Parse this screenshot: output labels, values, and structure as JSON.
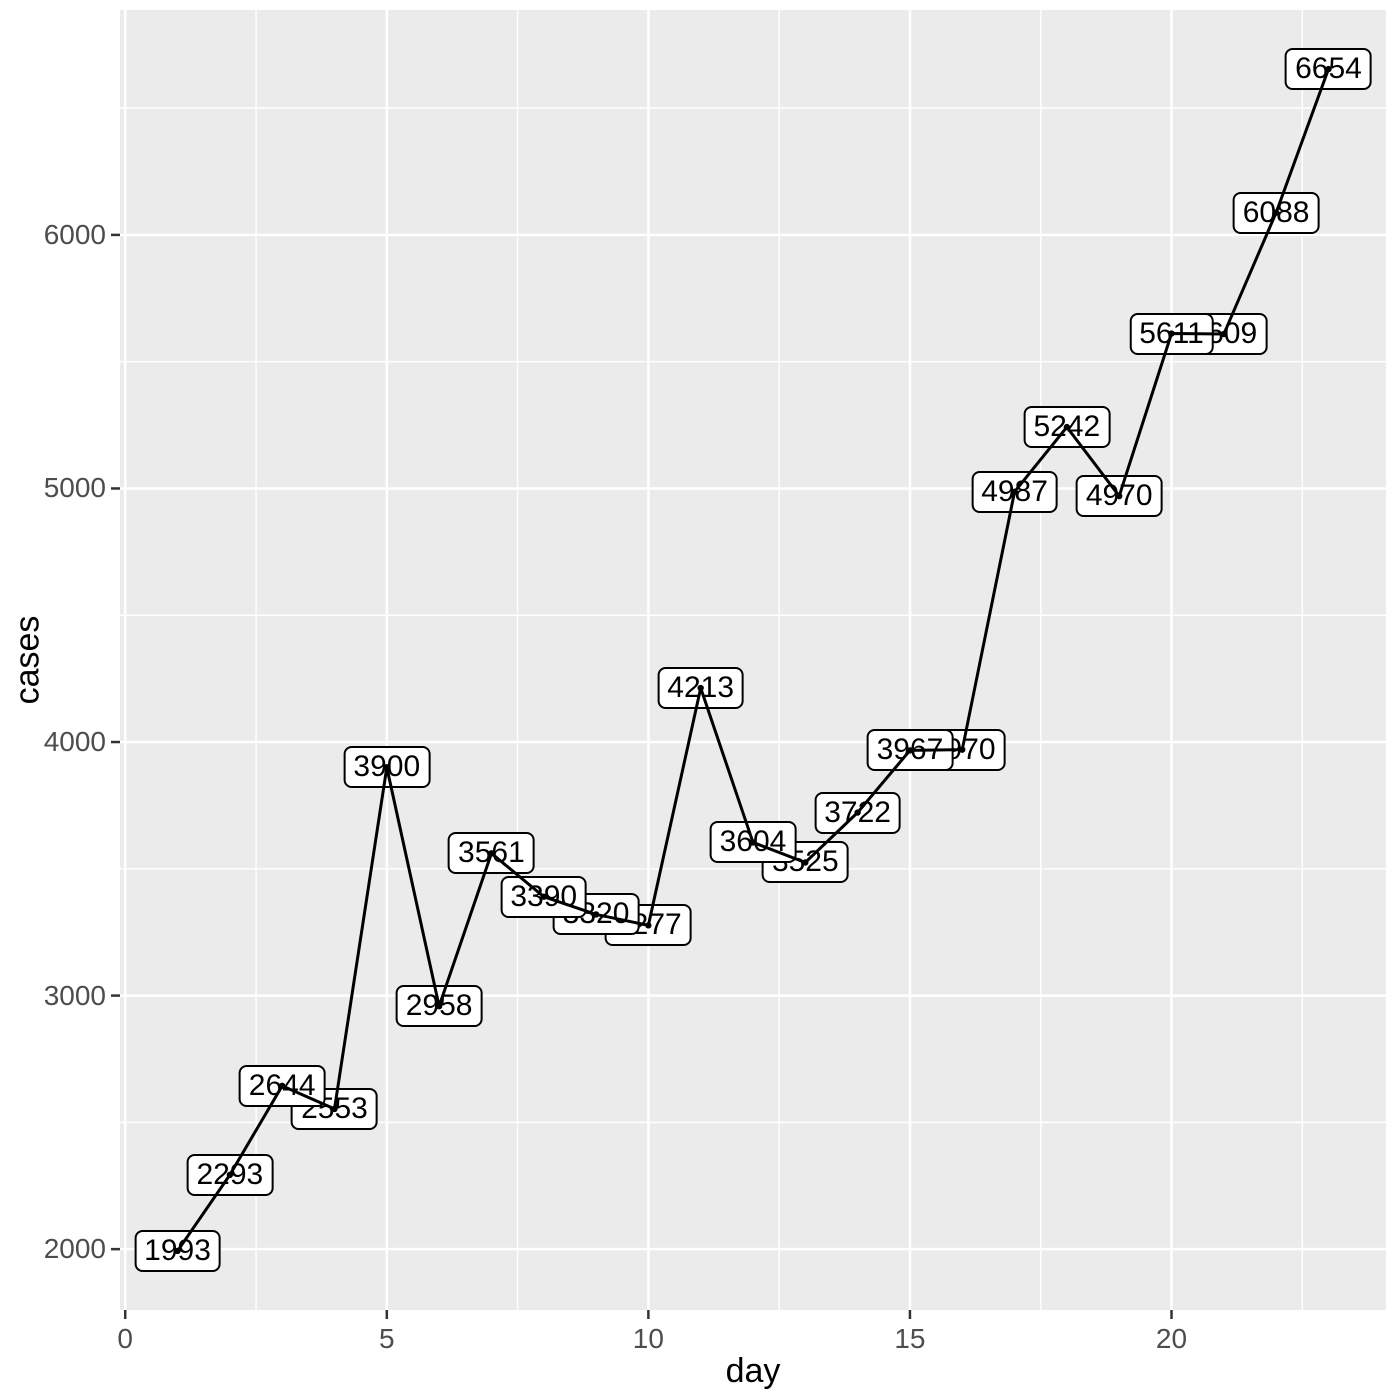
{
  "chart_data": {
    "type": "line",
    "title": "",
    "xlabel": "day",
    "ylabel": "cases",
    "x": [
      1,
      2,
      3,
      4,
      5,
      6,
      7,
      8,
      9,
      10,
      11,
      12,
      13,
      14,
      15,
      16,
      17,
      18,
      19,
      20,
      21,
      22,
      23
    ],
    "values": [
      1993,
      2293,
      2644,
      2553,
      3900,
      2958,
      3561,
      3390,
      3320,
      3277,
      4213,
      3604,
      3525,
      3722,
      3967,
      3970,
      4987,
      5242,
      4970,
      5611,
      5609,
      6088,
      6654
    ],
    "point_labels": [
      "1993",
      "2293",
      "2644",
      "2553",
      "3900",
      "2958",
      "3561",
      "3390",
      "3320",
      "3277",
      "4213",
      "3604",
      "3525",
      "3722",
      "3967",
      "3970",
      "4987",
      "5242",
      "4970",
      "5611",
      "5609",
      "6088",
      "6654"
    ],
    "x_ticks": [
      0,
      5,
      10,
      15,
      20
    ],
    "y_ticks": [
      2000,
      3000,
      4000,
      5000,
      6000
    ],
    "x_minor_ticks": [
      2.5,
      7.5,
      12.5,
      17.5,
      22.5
    ],
    "y_minor_ticks": [
      2500,
      3500,
      4500,
      5500,
      6500
    ],
    "xlim": [
      -0.1,
      24.1
    ],
    "ylim": [
      1760,
      6887
    ],
    "grid": true,
    "legend": false,
    "line_color": "#000000",
    "point_color": "#000000",
    "label_box_fill": "#FFFFFF",
    "label_box_border": "#000000",
    "label_text_color": "#000000"
  },
  "colors": {
    "panel_background": "#EBEBEB",
    "grid_major": "#FFFFFF",
    "grid_minor": "#FFFFFF",
    "axis_text": "#4D4D4D",
    "axis_title": "#000000",
    "tick_mark": "#333333"
  }
}
